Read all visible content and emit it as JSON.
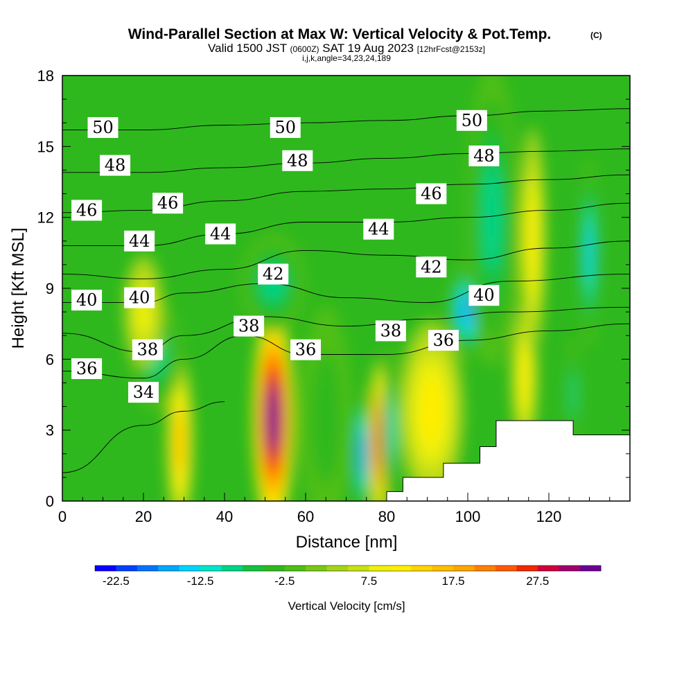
{
  "chart_data": {
    "type": "heatmap",
    "title": "Wind-Parallel Section at Max W: Vertical Velocity & Pot.Temp.",
    "title_mark": "(C)",
    "subtitle_main": "Valid 1500 JST",
    "subtitle_zulu": "(0600Z)",
    "subtitle_date": "SAT 19 Aug 2023",
    "subtitle_fcst": "[12hrFcst@2153z]",
    "subtitle_indices": "i,j,k,angle=34,23,24,189",
    "xlabel": "Distance [nm]",
    "ylabel": "Height [Kft MSL]",
    "xlim": [
      0,
      140
    ],
    "ylim": [
      0,
      18
    ],
    "x_ticks": [
      "0",
      "20",
      "40",
      "60",
      "80",
      "100",
      "120"
    ],
    "y_ticks": [
      "0",
      "3",
      "6",
      "9",
      "12",
      "15",
      "18"
    ],
    "colorbar": {
      "label": "Vertical Velocity [cm/s]",
      "tick_labels": [
        "-22.5",
        "-12.5",
        "-2.5",
        "7.5",
        "17.5",
        "27.5"
      ],
      "tick_values": [
        -22.5,
        -12.5,
        -2.5,
        7.5,
        17.5,
        27.5
      ],
      "min": -25,
      "max": 35,
      "step": 2.5,
      "colors": [
        "#0a00ff",
        "#0040ff",
        "#0073ff",
        "#00a8ff",
        "#00d4ff",
        "#00e6c8",
        "#00d486",
        "#14c23c",
        "#2eb81e",
        "#4fbf14",
        "#78c814",
        "#a4d41a",
        "#c8e014",
        "#eef00a",
        "#ffee00",
        "#ffd400",
        "#ffbe00",
        "#ffa500",
        "#ff8000",
        "#ff5a00",
        "#f02800",
        "#d2003c",
        "#a0006e",
        "#6e0096"
      ]
    },
    "potential_temperature_contours": [
      {
        "label": "34",
        "points": [
          [
            0,
            1.2
          ],
          [
            20,
            3.2
          ],
          [
            30,
            3.8
          ],
          [
            40,
            4.2
          ]
        ]
      },
      {
        "label": "36",
        "points": [
          [
            0,
            5.5
          ],
          [
            20,
            5.2
          ],
          [
            30,
            6.0
          ],
          [
            45,
            7.0
          ],
          [
            60,
            6.2
          ],
          [
            80,
            6.2
          ],
          [
            100,
            6.8
          ],
          [
            120,
            7.2
          ],
          [
            140,
            7.5
          ]
        ]
      },
      {
        "label": "38",
        "points": [
          [
            0,
            7.1
          ],
          [
            20,
            6.3
          ],
          [
            30,
            7.0
          ],
          [
            50,
            7.8
          ],
          [
            70,
            7.4
          ],
          [
            90,
            7.7
          ],
          [
            110,
            8.0
          ],
          [
            140,
            8.2
          ]
        ]
      },
      {
        "label": "40",
        "points": [
          [
            0,
            8.4
          ],
          [
            20,
            8.4
          ],
          [
            30,
            8.8
          ],
          [
            50,
            9.2
          ],
          [
            70,
            8.6
          ],
          [
            90,
            8.4
          ],
          [
            110,
            9.3
          ],
          [
            140,
            9.6
          ]
        ]
      },
      {
        "label": "42",
        "points": [
          [
            0,
            9.6
          ],
          [
            20,
            9.4
          ],
          [
            40,
            9.8
          ],
          [
            60,
            10.6
          ],
          [
            80,
            10.4
          ],
          [
            100,
            10.2
          ],
          [
            120,
            10.7
          ],
          [
            140,
            11.0
          ]
        ]
      },
      {
        "label": "44",
        "points": [
          [
            0,
            10.8
          ],
          [
            20,
            10.8
          ],
          [
            40,
            11.3
          ],
          [
            60,
            11.8
          ],
          [
            80,
            11.8
          ],
          [
            100,
            12.0
          ],
          [
            120,
            12.3
          ],
          [
            140,
            12.6
          ]
        ]
      },
      {
        "label": "46",
        "points": [
          [
            0,
            12.2
          ],
          [
            20,
            12.3
          ],
          [
            40,
            12.7
          ],
          [
            60,
            13.1
          ],
          [
            80,
            13.2
          ],
          [
            100,
            13.4
          ],
          [
            120,
            13.6
          ],
          [
            140,
            13.8
          ]
        ]
      },
      {
        "label": "48",
        "points": [
          [
            0,
            13.9
          ],
          [
            20,
            13.9
          ],
          [
            40,
            14.1
          ],
          [
            60,
            14.3
          ],
          [
            80,
            14.5
          ],
          [
            100,
            14.7
          ],
          [
            120,
            14.8
          ],
          [
            140,
            14.9
          ]
        ]
      },
      {
        "label": "50",
        "points": [
          [
            0,
            15.7
          ],
          [
            20,
            15.7
          ],
          [
            40,
            15.9
          ],
          [
            60,
            16.0
          ],
          [
            80,
            16.1
          ],
          [
            100,
            16.3
          ],
          [
            120,
            16.5
          ],
          [
            140,
            16.6
          ]
        ]
      }
    ],
    "contour_labels": [
      {
        "text": "50",
        "x": 10,
        "y": 15.8
      },
      {
        "text": "50",
        "x": 55,
        "y": 15.8
      },
      {
        "text": "50",
        "x": 101,
        "y": 16.1
      },
      {
        "text": "48",
        "x": 13,
        "y": 14.2
      },
      {
        "text": "48",
        "x": 58,
        "y": 14.4
      },
      {
        "text": "48",
        "x": 104,
        "y": 14.6
      },
      {
        "text": "46",
        "x": 6,
        "y": 12.3
      },
      {
        "text": "46",
        "x": 26,
        "y": 12.6
      },
      {
        "text": "46",
        "x": 91,
        "y": 13.0
      },
      {
        "text": "44",
        "x": 19,
        "y": 11.0
      },
      {
        "text": "44",
        "x": 39,
        "y": 11.3
      },
      {
        "text": "44",
        "x": 78,
        "y": 11.5
      },
      {
        "text": "42",
        "x": 52,
        "y": 9.6
      },
      {
        "text": "42",
        "x": 91,
        "y": 9.9
      },
      {
        "text": "40",
        "x": 6,
        "y": 8.5
      },
      {
        "text": "40",
        "x": 19,
        "y": 8.6
      },
      {
        "text": "40",
        "x": 104,
        "y": 8.7
      },
      {
        "text": "38",
        "x": 21,
        "y": 6.4
      },
      {
        "text": "38",
        "x": 46,
        "y": 7.4
      },
      {
        "text": "38",
        "x": 81,
        "y": 7.2
      },
      {
        "text": "36",
        "x": 6,
        "y": 5.6
      },
      {
        "text": "36",
        "x": 60,
        "y": 6.4
      },
      {
        "text": "36",
        "x": 94,
        "y": 6.8
      },
      {
        "text": "34",
        "x": 20,
        "y": 4.6
      }
    ],
    "vertical_velocity_features": [
      {
        "x": 29,
        "y": 2.5,
        "value": 15,
        "sx": 2.0,
        "sy": 2.2
      },
      {
        "x": 52,
        "y": 3.5,
        "value": 35,
        "sx": 3.2,
        "sy": 3.0
      },
      {
        "x": 78,
        "y": 2.5,
        "value": 25,
        "sx": 1.4,
        "sy": 2.2
      },
      {
        "x": 74,
        "y": 2.0,
        "value": -22,
        "sx": 1.2,
        "sy": 1.8
      },
      {
        "x": 81,
        "y": 3.0,
        "value": -14,
        "sx": 1.3,
        "sy": 2.2
      },
      {
        "x": 91,
        "y": 3.8,
        "value": 10,
        "sx": 5.0,
        "sy": 2.4
      },
      {
        "x": 100,
        "y": 8.1,
        "value": -18,
        "sx": 3.2,
        "sy": 1.3
      },
      {
        "x": 106,
        "y": 12.0,
        "value": -12,
        "sx": 4.0,
        "sy": 4.0
      },
      {
        "x": 114,
        "y": 5.3,
        "value": 12,
        "sx": 2.0,
        "sy": 2.0
      },
      {
        "x": 116,
        "y": 11.0,
        "value": 10,
        "sx": 2.0,
        "sy": 3.0
      },
      {
        "x": 130,
        "y": 10.5,
        "value": -16,
        "sx": 1.5,
        "sy": 2.5
      },
      {
        "x": 126,
        "y": 4.5,
        "value": -12,
        "sx": 1.2,
        "sy": 1.5
      },
      {
        "x": 23,
        "y": 6.2,
        "value": -12,
        "sx": 4.0,
        "sy": 1.5
      },
      {
        "x": 20,
        "y": 8.0,
        "value": 8,
        "sx": 3.0,
        "sy": 1.5
      },
      {
        "x": 52,
        "y": 9.2,
        "value": -12,
        "sx": 5.0,
        "sy": 1.3
      },
      {
        "x": 65,
        "y": 3.5,
        "value": -6,
        "sx": 4.0,
        "sy": 3.0
      }
    ],
    "terrain": [
      [
        80,
        0
      ],
      [
        80,
        0.4
      ],
      [
        84,
        0.4
      ],
      [
        84,
        1.0
      ],
      [
        94,
        1.0
      ],
      [
        94,
        1.6
      ],
      [
        103,
        1.6
      ],
      [
        103,
        2.3
      ],
      [
        107,
        2.3
      ],
      [
        107,
        3.4
      ],
      [
        126,
        3.4
      ],
      [
        126,
        2.8
      ],
      [
        140,
        2.8
      ],
      [
        140,
        0
      ]
    ]
  }
}
